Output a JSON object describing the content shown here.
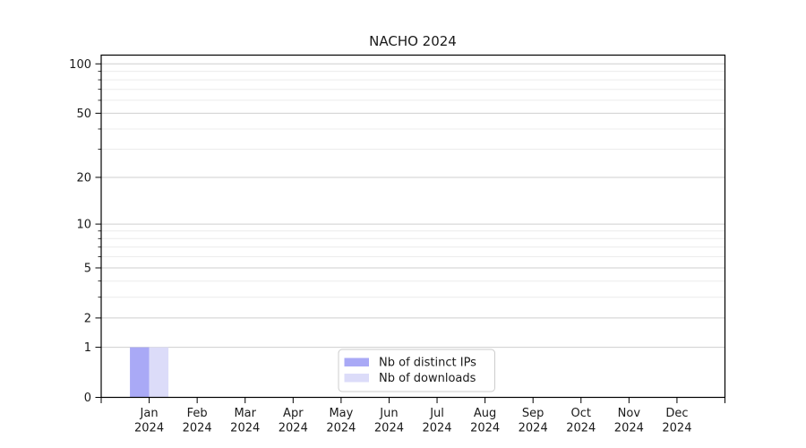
{
  "chart_data": {
    "type": "bar",
    "title": "NACHO 2024",
    "categories": [
      "Jan 2024",
      "Feb 2024",
      "Mar 2024",
      "Apr 2024",
      "May 2024",
      "Jun 2024",
      "Jul 2024",
      "Aug 2024",
      "Sep 2024",
      "Oct 2024",
      "Nov 2024",
      "Dec 2024"
    ],
    "series": [
      {
        "name": "Nb of distinct IPs",
        "color": "#a9a9f6",
        "values": [
          1,
          0,
          0,
          0,
          0,
          0,
          0,
          0,
          0,
          0,
          0,
          0
        ]
      },
      {
        "name": "Nb of downloads",
        "color": "#dcdcf9",
        "values": [
          1,
          0,
          0,
          0,
          0,
          0,
          0,
          0,
          0,
          0,
          0,
          0
        ]
      }
    ],
    "xlabel": "",
    "ylabel": "",
    "yscale": "log1p",
    "ylim": [
      0,
      113
    ],
    "y_major_ticks": [
      0,
      1,
      2,
      5,
      10,
      20,
      50,
      100
    ],
    "y_minor_ticks": [
      3,
      4,
      6,
      7,
      8,
      9,
      30,
      40,
      60,
      70,
      80,
      90
    ],
    "grid": "horizontal, major and minor, no vertical gridlines",
    "legend_position": "bottom center inside plot",
    "colors": {
      "background": "#ffffff",
      "axis": "#000000",
      "text": "#1a1a1a",
      "grid_major": "#cfcfcf",
      "grid_minor": "#ececec",
      "legend_border": "#cccccc",
      "legend_background": "#ffffff"
    }
  }
}
